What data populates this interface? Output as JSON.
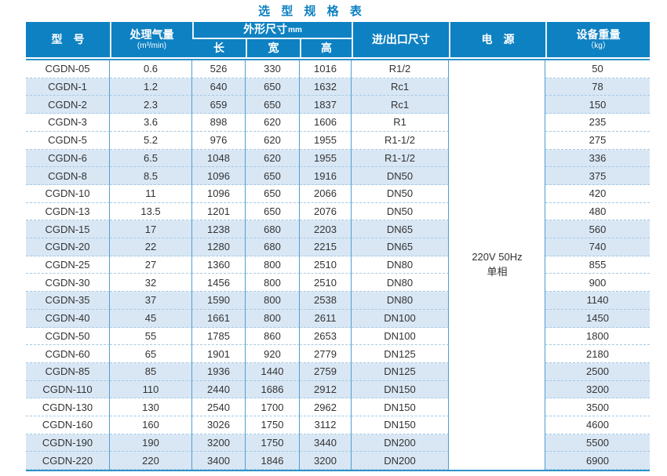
{
  "title": "选 型 规 格 表",
  "table": {
    "headers": {
      "model": "型　号",
      "capacity": "处理气量",
      "capacity_unit": "(m³/min)",
      "dimensions": "外形尺寸",
      "dimensions_unit": "mm",
      "length": "长",
      "width": "宽",
      "height": "高",
      "inlet_outlet": "进/出口尺寸",
      "power": "电　源",
      "weight": "设备重量",
      "weight_unit": "（kg）"
    },
    "power_cell": {
      "line1": "220V 50Hz",
      "line2": "单相"
    },
    "rows": [
      [
        "CGDN-05",
        "0.6",
        "526",
        "330",
        "1016",
        "R1/2",
        "50"
      ],
      [
        "CGDN-1",
        "1.2",
        "640",
        "650",
        "1632",
        "Rc1",
        "78"
      ],
      [
        "CGDN-2",
        "2.3",
        "659",
        "650",
        "1837",
        "Rc1",
        "150"
      ],
      [
        "CGDN-3",
        "3.6",
        "898",
        "620",
        "1606",
        "R1",
        "235"
      ],
      [
        "CGDN-5",
        "5.2",
        "976",
        "620",
        "1955",
        "R1-1/2",
        "275"
      ],
      [
        "CGDN-6",
        "6.5",
        "1048",
        "620",
        "1955",
        "R1-1/2",
        "336"
      ],
      [
        "CGDN-8",
        "8.5",
        "1096",
        "650",
        "1916",
        "DN50",
        "375"
      ],
      [
        "CGDN-10",
        "11",
        "1096",
        "650",
        "2066",
        "DN50",
        "420"
      ],
      [
        "CGDN-13",
        "13.5",
        "1201",
        "650",
        "2076",
        "DN50",
        "480"
      ],
      [
        "CGDN-15",
        "17",
        "1238",
        "680",
        "2203",
        "DN65",
        "560"
      ],
      [
        "CGDN-20",
        "22",
        "1280",
        "680",
        "2215",
        "DN65",
        "740"
      ],
      [
        "CGDN-25",
        "27",
        "1360",
        "800",
        "2510",
        "DN80",
        "855"
      ],
      [
        "CGDN-30",
        "32",
        "1456",
        "800",
        "2510",
        "DN80",
        "900"
      ],
      [
        "CGDN-35",
        "37",
        "1590",
        "800",
        "2538",
        "DN80",
        "1140"
      ],
      [
        "CGDN-40",
        "45",
        "1661",
        "800",
        "2611",
        "DN100",
        "1450"
      ],
      [
        "CGDN-50",
        "55",
        "1785",
        "860",
        "2653",
        "DN100",
        "1800"
      ],
      [
        "CGDN-60",
        "65",
        "1901",
        "920",
        "2779",
        "DN125",
        "2180"
      ],
      [
        "CGDN-85",
        "85",
        "1936",
        "1440",
        "2759",
        "DN125",
        "2500"
      ],
      [
        "CGDN-110",
        "110",
        "2440",
        "1686",
        "2912",
        "DN150",
        "3200"
      ],
      [
        "CGDN-130",
        "130",
        "2540",
        "1700",
        "2962",
        "DN150",
        "3500"
      ],
      [
        "CGDN-160",
        "160",
        "3026",
        "1750",
        "3112",
        "DN150",
        "4600"
      ],
      [
        "CGDN-190",
        "190",
        "3200",
        "1750",
        "3440",
        "DN200",
        "5500"
      ],
      [
        "CGDN-220",
        "220",
        "3400",
        "1846",
        "3200",
        "DN200",
        "6900"
      ]
    ],
    "striped_row_indices": [
      1,
      2,
      5,
      6,
      9,
      10,
      13,
      14,
      17,
      18,
      21,
      22
    ],
    "colors": {
      "header_bg": "#0e81c2",
      "title_text": "#0c80c2",
      "stripe_bg": "#d9e7f5",
      "column_line": "#4f9fd0",
      "row_dash": "#a6c9e3",
      "frame_line": "#2e93cb",
      "cell_text": "#333333"
    }
  }
}
